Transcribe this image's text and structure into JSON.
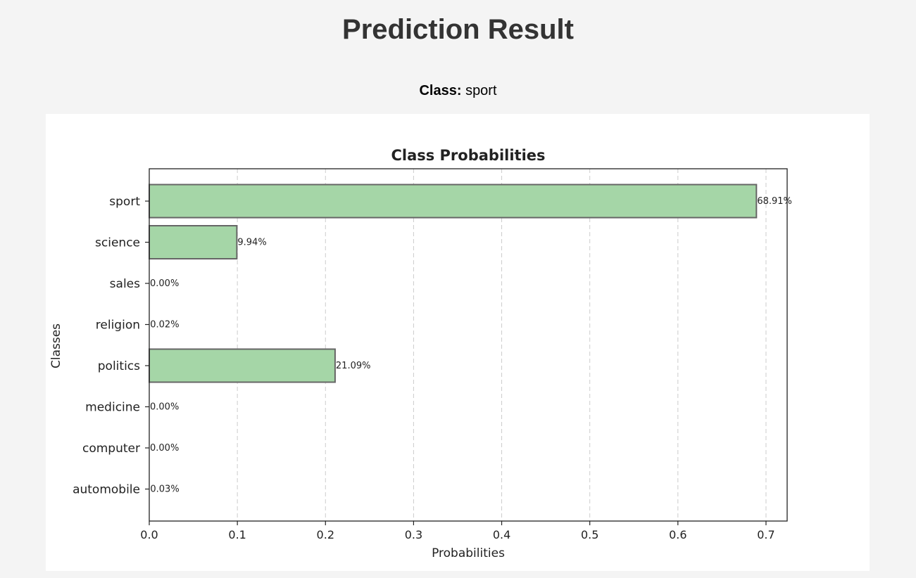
{
  "page": {
    "title": "Prediction Result",
    "class_label": "Class:",
    "class_value": "sport"
  },
  "chart_data": {
    "type": "bar",
    "orientation": "horizontal",
    "title": "Class Probabilities",
    "xlabel": "Probabilities",
    "ylabel": "Classes",
    "categories": [
      "sport",
      "science",
      "sales",
      "religion",
      "politics",
      "medicine",
      "computer",
      "automobile"
    ],
    "values": [
      0.6891,
      0.0994,
      0.0,
      0.0002,
      0.2109,
      0.0,
      0.0,
      0.0003
    ],
    "data_labels": [
      "68.91%",
      "9.94%",
      "0.00%",
      "0.02%",
      "21.09%",
      "0.00%",
      "0.00%",
      "0.03%"
    ],
    "xticks": [
      "0.0",
      "0.1",
      "0.2",
      "0.3",
      "0.4",
      "0.5",
      "0.6",
      "0.7"
    ],
    "xlim": [
      0,
      0.724
    ],
    "grid": "x-dashed",
    "bar_color": "#a5d6a7",
    "bar_edge_color": "#666666"
  }
}
